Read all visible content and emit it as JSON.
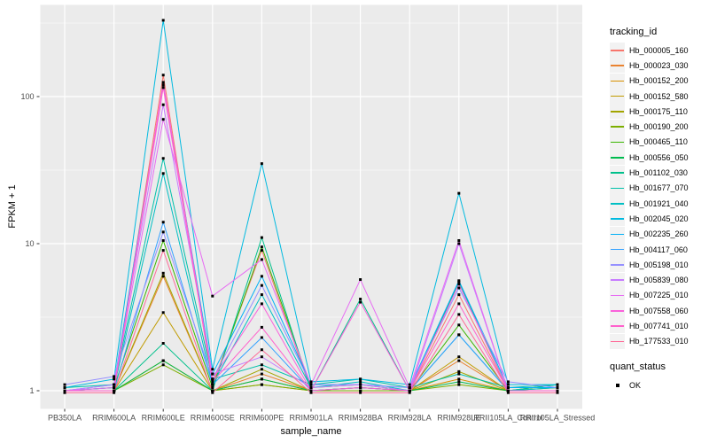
{
  "chart_data": {
    "type": "line",
    "title": "",
    "xlabel": "sample_name",
    "ylabel": "FPKM + 1",
    "yscale": "log10",
    "ylim": [
      0.93,
      400
    ],
    "yticks": [
      1,
      10,
      100
    ],
    "ytick_labels": [
      "1",
      "10",
      "100"
    ],
    "yminor": [
      3.1623,
      31.623,
      316.23
    ],
    "grid": true,
    "legend_position": "right",
    "panel_bg": "#EBEBEB",
    "grid_color": "#FFFFFF",
    "tick_color": "#333333",
    "tick_label_color": "#4D4D4D",
    "point_color": "#000000",
    "categories": [
      "PB350LA",
      "RRIM600LA",
      "RRIM600LE",
      "RRIM600SE",
      "RRIM600PE",
      "RRIM901LA",
      "RRIM928BA",
      "RRIM928LA",
      "RRIM928LE",
      "RRII105LA_Control",
      "RRII105LA_Stressed"
    ],
    "series": [
      {
        "name": "Hb_000005_160",
        "color": "#F8766D",
        "values": [
          1.0,
          1.0,
          140,
          1.1,
          9.0,
          1.0,
          1.0,
          1.0,
          4.5,
          1.0,
          1.0
        ]
      },
      {
        "name": "Hb_000023_030",
        "color": "#EA8331",
        "values": [
          1.0,
          1.0,
          6.0,
          1.0,
          1.3,
          1.0,
          1.0,
          1.0,
          1.6,
          1.0,
          1.0
        ]
      },
      {
        "name": "Hb_000152_200",
        "color": "#D89000",
        "values": [
          1.0,
          1.0,
          1.6,
          1.0,
          1.1,
          1.0,
          1.0,
          1.0,
          1.2,
          1.0,
          1.0
        ]
      },
      {
        "name": "Hb_000152_580",
        "color": "#C09B00",
        "values": [
          1.0,
          1.0,
          3.4,
          1.0,
          1.2,
          1.0,
          1.0,
          1.0,
          1.7,
          1.0,
          1.0
        ]
      },
      {
        "name": "Hb_000175_110",
        "color": "#A3A500",
        "values": [
          1.0,
          1.0,
          6.3,
          1.0,
          1.4,
          1.0,
          1.05,
          1.0,
          1.35,
          1.0,
          1.0
        ]
      },
      {
        "name": "Hb_000190_200",
        "color": "#7CAE00",
        "values": [
          1.0,
          1.0,
          1.5,
          1.0,
          1.1,
          1.0,
          1.0,
          1.0,
          1.1,
          1.0,
          1.0
        ]
      },
      {
        "name": "Hb_000465_110",
        "color": "#39B600",
        "values": [
          1.0,
          1.05,
          10.5,
          1.05,
          9.5,
          1.05,
          1.1,
          1.0,
          2.8,
          1.0,
          1.05
        ]
      },
      {
        "name": "Hb_000556_050",
        "color": "#00BB4E",
        "values": [
          1.0,
          1.0,
          1.6,
          1.0,
          1.2,
          1.0,
          1.05,
          1.0,
          1.15,
          1.0,
          1.1
        ]
      },
      {
        "name": "Hb_001102_030",
        "color": "#00C08B",
        "values": [
          1.0,
          1.0,
          2.1,
          1.0,
          11.0,
          1.0,
          4.2,
          1.0,
          5.5,
          1.0,
          1.1
        ]
      },
      {
        "name": "Hb_001677_070",
        "color": "#00C1A9",
        "values": [
          1.05,
          1.1,
          38,
          1.2,
          1.5,
          1.1,
          1.2,
          1.05,
          1.3,
          1.05,
          1.1
        ]
      },
      {
        "name": "Hb_001921_040",
        "color": "#00BFC4",
        "values": [
          1.0,
          1.05,
          30,
          1.1,
          4.5,
          1.05,
          1.15,
          1.0,
          2.4,
          1.0,
          1.05
        ]
      },
      {
        "name": "Hb_002045_020",
        "color": "#00BAE0",
        "values": [
          1.05,
          1.2,
          330,
          1.4,
          35,
          1.15,
          1.2,
          1.1,
          22,
          1.1,
          1.1
        ]
      },
      {
        "name": "Hb_002235_260",
        "color": "#00B0F6",
        "values": [
          1.0,
          1.1,
          120,
          1.3,
          6.0,
          1.1,
          1.1,
          1.05,
          5.6,
          1.05,
          1.05
        ]
      },
      {
        "name": "Hb_004117_060",
        "color": "#35A2FF",
        "values": [
          1.0,
          1.0,
          14,
          1.1,
          2.3,
          1.0,
          1.05,
          1.0,
          2.4,
          1.0,
          1.0
        ]
      },
      {
        "name": "Hb_005198_010",
        "color": "#9590FF",
        "values": [
          1.1,
          1.25,
          12,
          1.2,
          5.2,
          1.1,
          1.1,
          1.05,
          5.0,
          1.15,
          1.05
        ]
      },
      {
        "name": "Hb_005839_080",
        "color": "#C77CFF",
        "values": [
          1.0,
          1.1,
          88,
          1.3,
          1.7,
          1.05,
          1.1,
          1.0,
          10.0,
          1.0,
          1.0
        ]
      },
      {
        "name": "Hb_007225_010",
        "color": "#E76BF3",
        "values": [
          1.0,
          1.05,
          70,
          4.4,
          7.8,
          1.1,
          5.7,
          1.05,
          10.5,
          1.0,
          1.0
        ]
      },
      {
        "name": "Hb_007558_060",
        "color": "#FA62DB",
        "values": [
          1.0,
          1.0,
          125,
          1.2,
          3.9,
          1.0,
          4.0,
          1.0,
          5.3,
          1.0,
          1.0
        ]
      },
      {
        "name": "Hb_007741_010",
        "color": "#FF61CC",
        "values": [
          1.0,
          1.0,
          115,
          1.15,
          2.7,
          1.0,
          1.05,
          1.0,
          3.9,
          1.0,
          1.0
        ]
      },
      {
        "name": "Hb_177533_010",
        "color": "#FF6A98",
        "values": [
          0.97,
          0.97,
          9.0,
          0.97,
          1.9,
          0.97,
          0.97,
          0.97,
          3.3,
          0.97,
          0.97
        ]
      }
    ],
    "legend": {
      "tracking_id_title": "tracking_id",
      "quant_status_title": "quant_status",
      "quant_status_items": [
        "OK"
      ]
    }
  }
}
